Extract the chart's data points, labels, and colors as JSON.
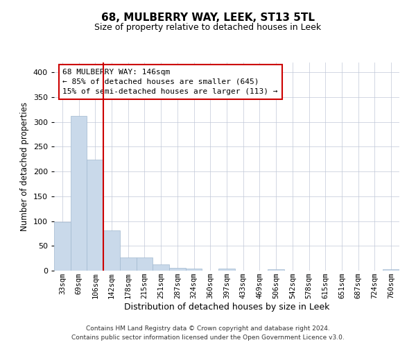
{
  "title": "68, MULBERRY WAY, LEEK, ST13 5TL",
  "subtitle": "Size of property relative to detached houses in Leek",
  "xlabel": "Distribution of detached houses by size in Leek",
  "ylabel": "Number of detached properties",
  "footnote1": "Contains HM Land Registry data © Crown copyright and database right 2024.",
  "footnote2": "Contains public sector information licensed under the Open Government Licence v3.0.",
  "annotation_title": "68 MULBERRY WAY: 146sqm",
  "annotation_line1": "← 85% of detached houses are smaller (645)",
  "annotation_line2": "15% of semi-detached houses are larger (113) →",
  "bar_color": "#c9d9ea",
  "bar_edge_color": "#a0b8d0",
  "vline_color": "#cc0000",
  "annotation_box_color": "#cc0000",
  "categories": [
    "33sqm",
    "69sqm",
    "106sqm",
    "142sqm",
    "178sqm",
    "215sqm",
    "251sqm",
    "287sqm",
    "324sqm",
    "360sqm",
    "397sqm",
    "433sqm",
    "469sqm",
    "506sqm",
    "542sqm",
    "578sqm",
    "615sqm",
    "651sqm",
    "687sqm",
    "724sqm",
    "760sqm"
  ],
  "values": [
    98,
    312,
    224,
    81,
    26,
    26,
    12,
    5,
    4,
    0,
    4,
    0,
    0,
    3,
    0,
    0,
    0,
    0,
    0,
    0,
    3
  ],
  "vline_x": 2.5,
  "ylim": [
    0,
    420
  ],
  "yticks": [
    0,
    50,
    100,
    150,
    200,
    250,
    300,
    350,
    400
  ],
  "figsize": [
    6.0,
    5.0
  ],
  "dpi": 100
}
